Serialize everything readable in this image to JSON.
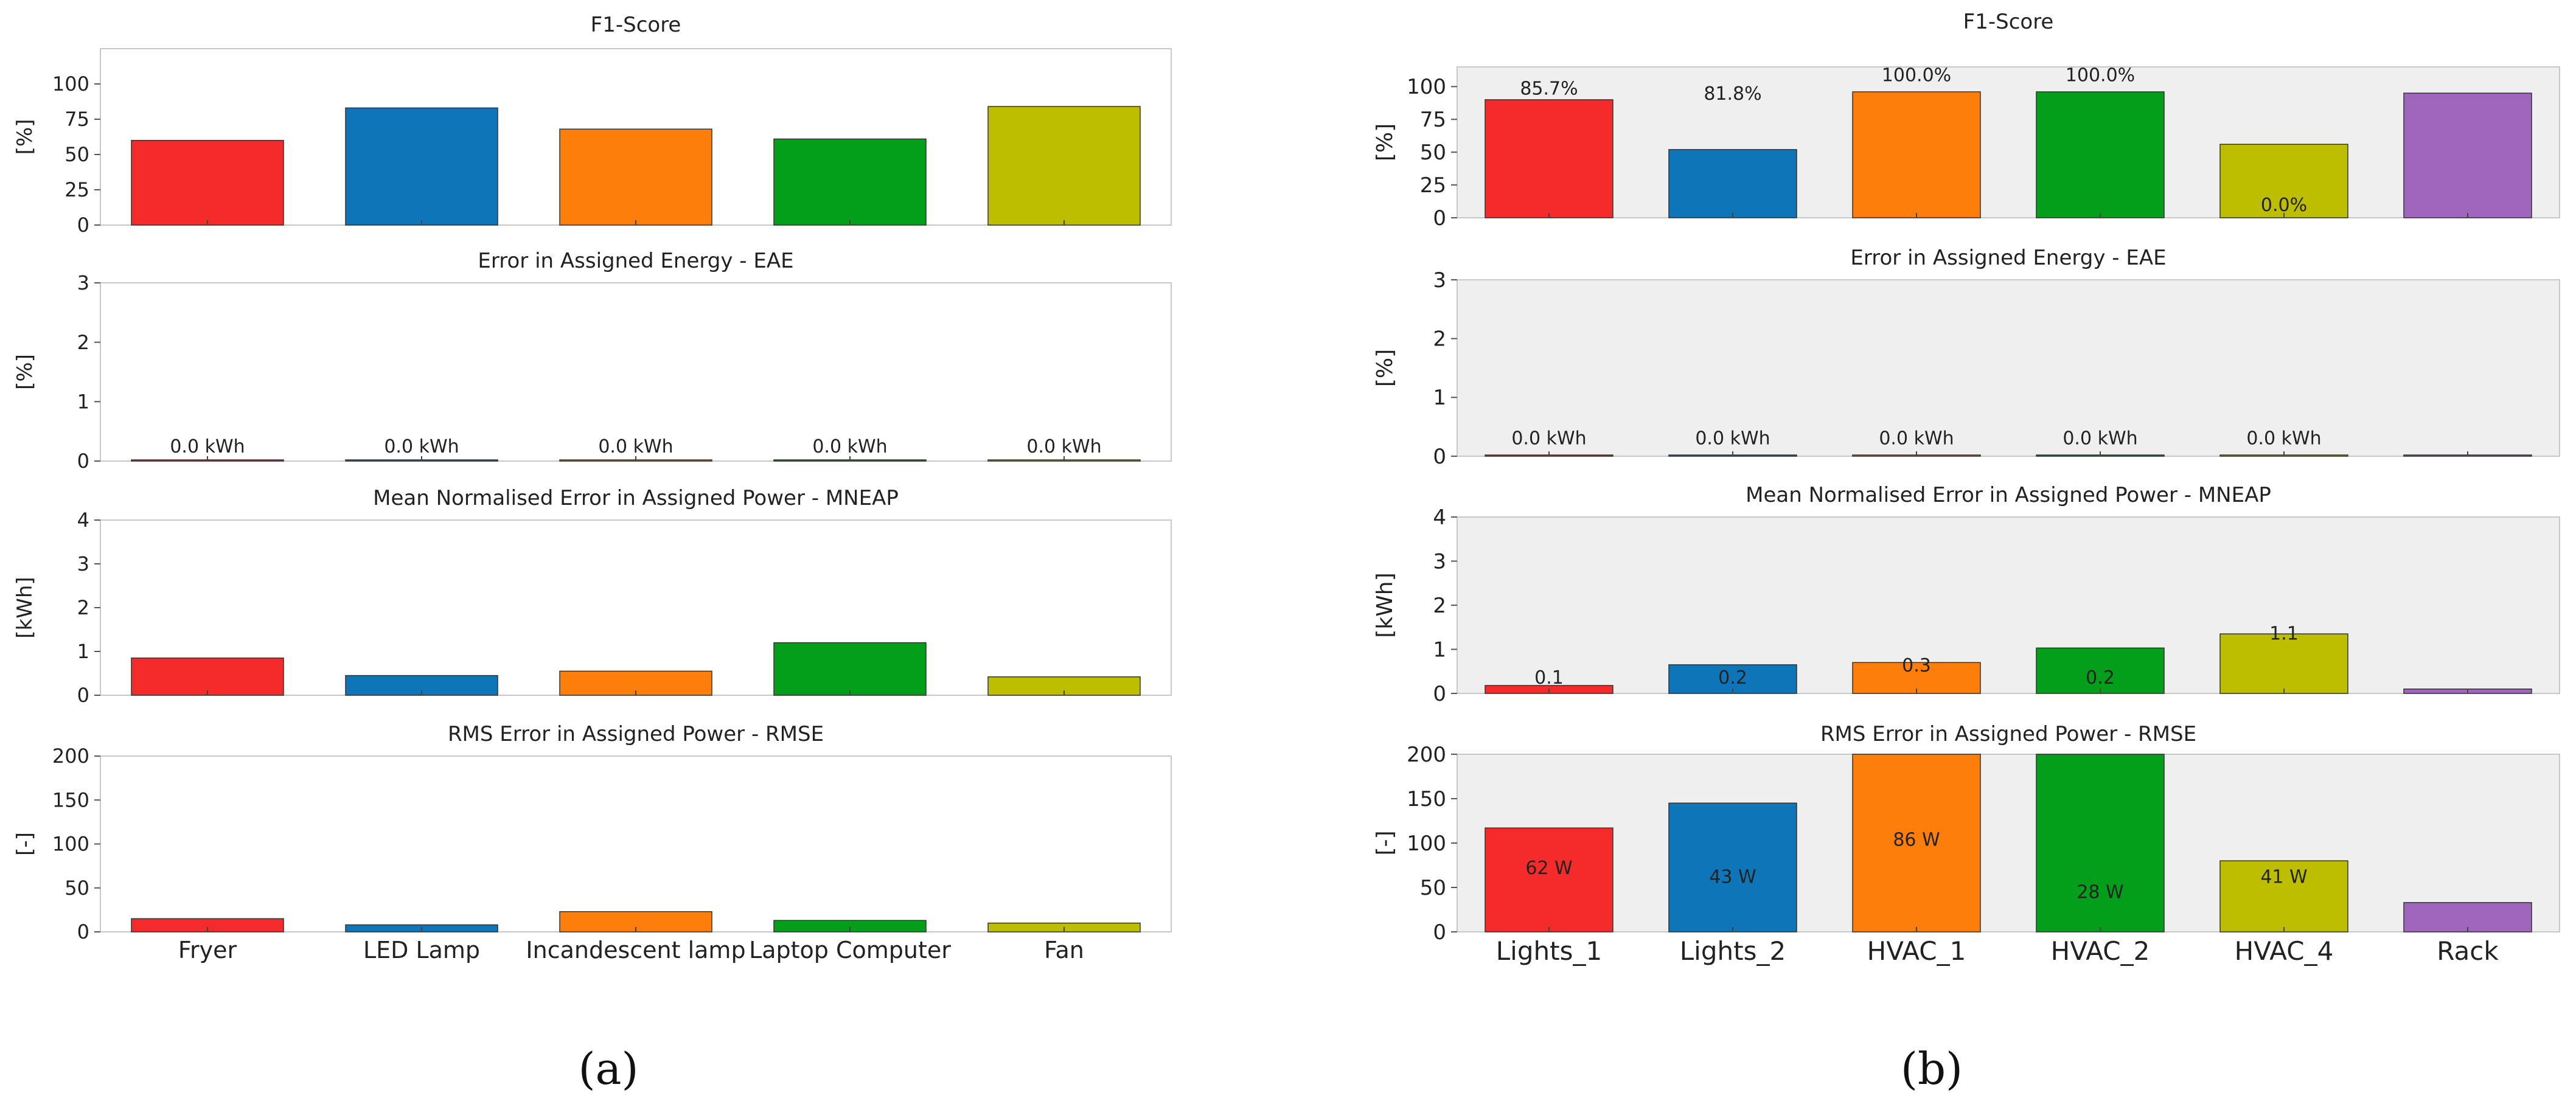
{
  "captions": {
    "a": "(a)",
    "b": "(b)"
  },
  "colors": {
    "red": "#f52a2a",
    "blue": "#0f75b9",
    "orange": "#fd7e0a",
    "green": "#049f1a",
    "olive": "#bebe00",
    "purple": "#a066bd",
    "panel_bg_a": "#ffffff",
    "panel_bg_b": "#efefef",
    "frame": "#c8c8c8",
    "text": "#222222"
  },
  "chart_data": [
    {
      "id": "a",
      "type": "bar",
      "categories": [
        "Fryer",
        "LED Lamp",
        "Incandescent lamp",
        "Laptop Computer",
        "Fan"
      ],
      "bar_colors": [
        "red",
        "blue",
        "orange",
        "green",
        "olive"
      ],
      "subplots": [
        {
          "key": "f1",
          "title": "F1-Score",
          "ylabel": "[%]",
          "ylim": [
            0,
            125
          ],
          "yticks": [
            0,
            25,
            50,
            75,
            100
          ],
          "values": [
            60,
            83,
            68,
            61,
            84
          ],
          "labels": [
            "",
            "",
            "",
            "",
            ""
          ]
        },
        {
          "key": "eae",
          "title": "Error in Assigned Energy - EAE",
          "ylabel": "[%]",
          "ylim": [
            0,
            3
          ],
          "yticks": [
            0,
            1,
            2,
            3
          ],
          "values": [
            0,
            0,
            0,
            0,
            0
          ],
          "labels": [
            "0.0 kWh",
            "0.0 kWh",
            "0.0 kWh",
            "0.0 kWh",
            "0.0 kWh"
          ]
        },
        {
          "key": "mneap",
          "title": "Mean Normalised Error in Assigned Power - MNEAP",
          "ylabel": "[kWh]",
          "ylim": [
            0,
            4
          ],
          "yticks": [
            0,
            1,
            2,
            3,
            4
          ],
          "values": [
            0.85,
            0.45,
            0.55,
            1.2,
            0.42
          ],
          "labels": [
            "",
            "",
            "",
            "",
            ""
          ]
        },
        {
          "key": "rmse",
          "title": "RMS Error in Assigned Power - RMSE",
          "ylabel": "[-]",
          "ylim": [
            0,
            200
          ],
          "yticks": [
            0,
            50,
            100,
            150,
            200
          ],
          "values": [
            15,
            8,
            23,
            13,
            10
          ],
          "labels": [
            "",
            "",
            "",
            "",
            ""
          ]
        }
      ]
    },
    {
      "id": "b",
      "type": "bar",
      "categories": [
        "Lights_1",
        "Lights_2",
        "HVAC_1",
        "HVAC_2",
        "HVAC_4",
        "Rack"
      ],
      "bar_colors": [
        "red",
        "blue",
        "orange",
        "green",
        "olive",
        "purple"
      ],
      "subplots": [
        {
          "key": "f1",
          "title": "F1-Score",
          "ylabel": "[%]",
          "ylim": [
            0,
            115
          ],
          "yticks": [
            0,
            25,
            50,
            75,
            100
          ],
          "values": [
            90,
            52,
            96,
            96,
            56,
            95
          ],
          "labels": [
            "85.7%",
            "81.8%",
            "100.0%",
            "100.0%",
            "0.0%",
            ""
          ],
          "label_values": [
            94,
            90,
            104,
            104,
            5,
            null
          ]
        },
        {
          "key": "eae",
          "title": "Error in Assigned Energy - EAE",
          "ylabel": "[%]",
          "ylim": [
            0,
            3
          ],
          "yticks": [
            0,
            1,
            2,
            3
          ],
          "values": [
            0,
            0,
            0,
            0,
            0,
            0.02
          ],
          "labels": [
            "0.0 kWh",
            "0.0 kWh",
            "0.0 kWh",
            "0.0 kWh",
            "0.0 kWh",
            ""
          ],
          "label_values": [
            0.2,
            0.2,
            0.2,
            0.2,
            0.2,
            null
          ]
        },
        {
          "key": "mneap",
          "title": "Mean Normalised Error in Assigned Power - MNEAP",
          "ylabel": "[kWh]",
          "ylim": [
            0,
            4
          ],
          "yticks": [
            0,
            1,
            2,
            3,
            4
          ],
          "values": [
            0.18,
            0.65,
            0.7,
            1.03,
            1.35,
            0.1
          ],
          "labels": [
            "0.1",
            "0.2",
            "0.3",
            "0.2",
            "1.1",
            ""
          ],
          "label_values": [
            0.22,
            0.22,
            0.5,
            0.22,
            1.22,
            null
          ]
        },
        {
          "key": "rmse",
          "title": "RMS Error in Assigned Power - RMSE",
          "ylabel": "[-]",
          "ylim": [
            0,
            200
          ],
          "yticks": [
            0,
            50,
            100,
            150,
            200
          ],
          "values": [
            117,
            145,
            200,
            200,
            80,
            33
          ],
          "labels": [
            "62 W",
            "43 W",
            "86 W",
            "28 W",
            "41 W",
            ""
          ],
          "label_values": [
            65,
            55,
            97,
            38,
            55,
            null
          ]
        }
      ]
    }
  ]
}
